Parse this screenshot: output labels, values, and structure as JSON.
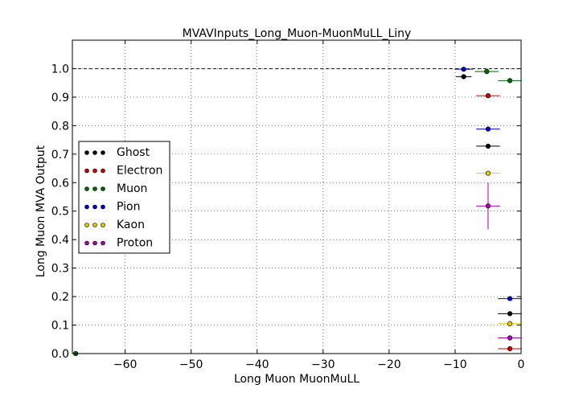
{
  "chart_data": {
    "type": "scatter",
    "title": "MVAVInputs_Long_Muon-MuonMuLL_Liny",
    "xlabel": "Long Muon MuonMuLL",
    "ylabel": "Long Muon MVA Output",
    "xlim": [
      -68,
      0
    ],
    "ylim": [
      0,
      1.1
    ],
    "xticks": [
      -60,
      -50,
      -40,
      -30,
      -20,
      -10,
      0
    ],
    "xtick_labels": [
      "−60",
      "−50",
      "−40",
      "−30",
      "−20",
      "−10",
      "0"
    ],
    "yticks": [
      0.0,
      0.1,
      0.2,
      0.3,
      0.4,
      0.5,
      0.6,
      0.7,
      0.8,
      0.9,
      1.0
    ],
    "ytick_labels": [
      "0.0",
      "0.1",
      "0.2",
      "0.3",
      "0.4",
      "0.5",
      "0.6",
      "0.7",
      "0.8",
      "0.9",
      "1.0"
    ],
    "grid": true,
    "reference_line_y": 1.0,
    "legend_position": "center-left",
    "series": [
      {
        "name": "Ghost",
        "color": "#000000",
        "points": [
          {
            "x": -8.7,
            "y": 0.972,
            "xerr": 1.2,
            "yerr": 0.004
          },
          {
            "x": -5.0,
            "y": 0.728,
            "xerr": 1.8,
            "yerr": 0.004
          },
          {
            "x": -1.7,
            "y": 0.14,
            "xerr": 1.8,
            "yerr": 0.003
          }
        ]
      },
      {
        "name": "Electron",
        "color": "#cc0000",
        "points": [
          {
            "x": -5.0,
            "y": 0.905,
            "xerr": 1.8,
            "yerr": 0.004
          },
          {
            "x": -1.7,
            "y": 0.017,
            "xerr": 1.8,
            "yerr": 0.003
          }
        ]
      },
      {
        "name": "Muon",
        "color": "#006600",
        "points": [
          {
            "x": -5.2,
            "y": 0.99,
            "xerr": 1.8,
            "yerr": 0.003
          },
          {
            "x": -1.7,
            "y": 0.958,
            "xerr": 1.8,
            "yerr": 0.003
          },
          {
            "x": -67.5,
            "y": 0.0,
            "xerr": 0.0,
            "yerr": 0.0
          }
        ]
      },
      {
        "name": "Pion",
        "color": "#0000cc",
        "points": [
          {
            "x": -8.7,
            "y": 0.998,
            "xerr": 1.4,
            "yerr": 0.003
          },
          {
            "x": -5.0,
            "y": 0.788,
            "xerr": 1.8,
            "yerr": 0.004
          },
          {
            "x": -1.7,
            "y": 0.193,
            "xerr": 1.8,
            "yerr": 0.003
          }
        ]
      },
      {
        "name": "Kaon",
        "color": "#e6c800",
        "points": [
          {
            "x": -5.0,
            "y": 0.633,
            "xerr": 1.8,
            "yerr": 0.006
          },
          {
            "x": -1.7,
            "y": 0.105,
            "xerr": 1.8,
            "yerr": 0.003
          }
        ]
      },
      {
        "name": "Proton",
        "color": "#aa00aa",
        "points": [
          {
            "x": -5.0,
            "y": 0.518,
            "xerr": 1.8,
            "yerr": 0.082
          },
          {
            "x": -1.7,
            "y": 0.055,
            "xerr": 1.8,
            "yerr": 0.003
          }
        ]
      }
    ]
  }
}
